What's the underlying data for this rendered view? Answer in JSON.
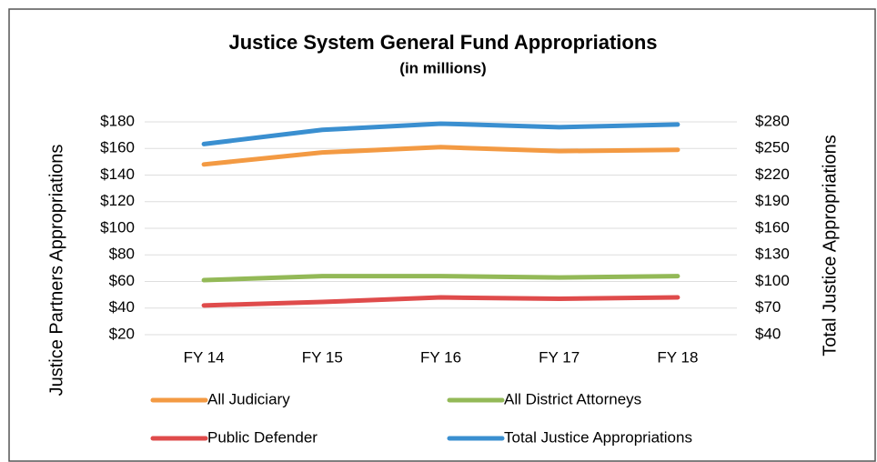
{
  "chart_data": {
    "type": "line",
    "title": "Justice System General Fund Appropriations",
    "subtitle": "(in millions)",
    "y_label": "Justice Partners Appropriations",
    "y2_label": "Total Justice Appropriations",
    "categories": [
      "FY 14",
      "FY 15",
      "FY 16",
      "FY 17",
      "FY 18"
    ],
    "series": [
      {
        "name": "All Judiciary",
        "color": "#f39a43",
        "values": [
          148,
          157,
          161,
          158,
          159
        ]
      },
      {
        "name": "All District Attorneys",
        "color": "#93b957",
        "values": [
          61,
          64,
          64,
          63,
          64
        ]
      },
      {
        "name": "Public Defender",
        "color": "#df4b4b",
        "values": [
          42,
          44.6,
          48,
          47,
          48
        ]
      },
      {
        "name": "Total Justice Appropriations",
        "color": "#3a8fd0",
        "axis": "y2",
        "values": [
          255,
          271,
          278,
          274,
          277
        ]
      }
    ],
    "ylim": [
      20,
      180
    ],
    "yticks": [
      {
        "value": 20,
        "label": "$20"
      },
      {
        "value": 40,
        "label": "$40"
      },
      {
        "value": 60,
        "label": "$60"
      },
      {
        "value": 80,
        "label": "$80"
      },
      {
        "value": 100,
        "label": "$100"
      },
      {
        "value": 120,
        "label": "$120"
      },
      {
        "value": 140,
        "label": "$140"
      },
      {
        "value": 160,
        "label": "$160"
      },
      {
        "value": 180,
        "label": "$180"
      }
    ],
    "y2lim": [
      40,
      280
    ],
    "y2ticks": [
      {
        "value": 40,
        "label": "$40"
      },
      {
        "value": 70,
        "label": "$70"
      },
      {
        "value": 100,
        "label": "$100"
      },
      {
        "value": 130,
        "label": "$130"
      },
      {
        "value": 160,
        "label": "$160"
      },
      {
        "value": 190,
        "label": "$190"
      },
      {
        "value": 220,
        "label": "$220"
      },
      {
        "value": 250,
        "label": "$250"
      },
      {
        "value": 280,
        "label": "$280"
      }
    ],
    "grid": true,
    "legend": "bottom"
  }
}
